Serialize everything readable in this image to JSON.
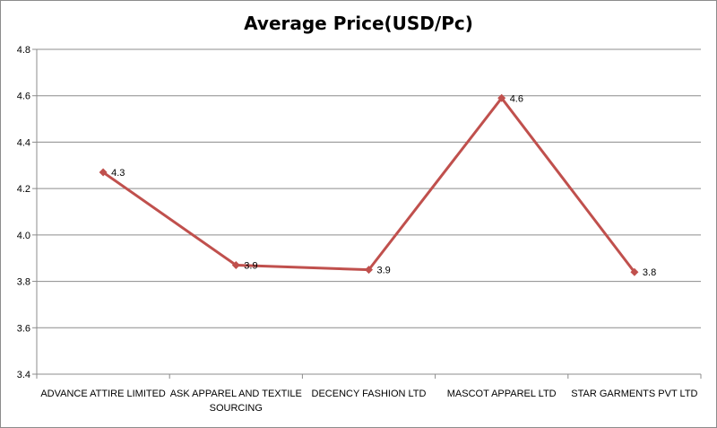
{
  "chart_data": {
    "type": "line",
    "title": "Average Price(USD/Pc)",
    "categories": [
      [
        "ADVANCE ATTIRE  LIMITED"
      ],
      [
        "ASK APPAREL AND  TEXTILE",
        "SOURCING"
      ],
      [
        "DECENCY  FASHION LTD"
      ],
      [
        "MASCOT APPAREL LTD"
      ],
      [
        "STAR GARMENTS  PVT LTD"
      ]
    ],
    "series": [
      {
        "values": [
          4.27,
          3.87,
          3.85,
          4.59,
          3.84
        ],
        "labels": [
          "4.3",
          "3.9",
          "3.9",
          "4.6",
          "3.8"
        ],
        "color": "#c0504d"
      }
    ],
    "ylim": [
      3.4,
      4.8
    ],
    "yticks": [
      "3.4",
      "3.6",
      "3.8",
      "4.0",
      "4.2",
      "4.4",
      "4.6",
      "4.8"
    ],
    "grid": true,
    "legend": "none"
  }
}
